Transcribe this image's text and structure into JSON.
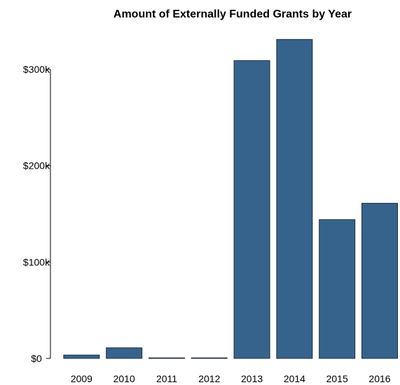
{
  "chart_data": {
    "type": "bar",
    "title": "Amount of Externally Funded Grants by Year",
    "xlabel": "",
    "ylabel": "",
    "categories": [
      "2009",
      "2010",
      "2011",
      "2012",
      "2013",
      "2014",
      "2015",
      "2016"
    ],
    "values": [
      3500,
      11000,
      200,
      200,
      309000,
      331000,
      144000,
      161000
    ],
    "ylim": [
      0,
      350000
    ],
    "yticks": [
      0,
      100000,
      200000,
      300000
    ],
    "ytick_labels": [
      "$0",
      "$100k",
      "$200k",
      "$300k"
    ],
    "grid": false,
    "legend": "none",
    "colors": {
      "bar_fill": "#36638c",
      "bar_stroke": "#1f2f3f",
      "axis": "#000000",
      "text": "#000000",
      "background": "#ffffff"
    }
  }
}
